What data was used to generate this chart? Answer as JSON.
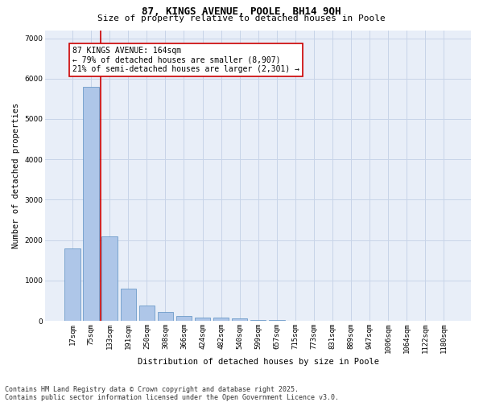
{
  "title": "87, KINGS AVENUE, POOLE, BH14 9QH",
  "subtitle": "Size of property relative to detached houses in Poole",
  "xlabel": "Distribution of detached houses by size in Poole",
  "ylabel": "Number of detached properties",
  "categories": [
    "17sqm",
    "75sqm",
    "133sqm",
    "191sqm",
    "250sqm",
    "308sqm",
    "366sqm",
    "424sqm",
    "482sqm",
    "540sqm",
    "599sqm",
    "657sqm",
    "715sqm",
    "773sqm",
    "831sqm",
    "889sqm",
    "947sqm",
    "1006sqm",
    "1064sqm",
    "1122sqm",
    "1180sqm"
  ],
  "values": [
    1800,
    5800,
    2100,
    800,
    380,
    210,
    130,
    90,
    80,
    55,
    30,
    15,
    10,
    5,
    3,
    2,
    1,
    1,
    1,
    0,
    0
  ],
  "bar_color": "#aec6e8",
  "bar_edge_color": "#5a8fc2",
  "vline_x": 1.5,
  "vline_color": "#cc0000",
  "annotation_box_text": "87 KINGS AVENUE: 164sqm\n← 79% of detached houses are smaller (8,907)\n21% of semi-detached houses are larger (2,301) →",
  "ylim": [
    0,
    7200
  ],
  "background_color": "#e8eef8",
  "grid_color": "#c8d4e8",
  "footer_text": "Contains HM Land Registry data © Crown copyright and database right 2025.\nContains public sector information licensed under the Open Government Licence v3.0.",
  "title_fontsize": 9,
  "subtitle_fontsize": 8,
  "axis_label_fontsize": 7.5,
  "tick_fontsize": 6.5,
  "annotation_fontsize": 7,
  "footer_fontsize": 6
}
